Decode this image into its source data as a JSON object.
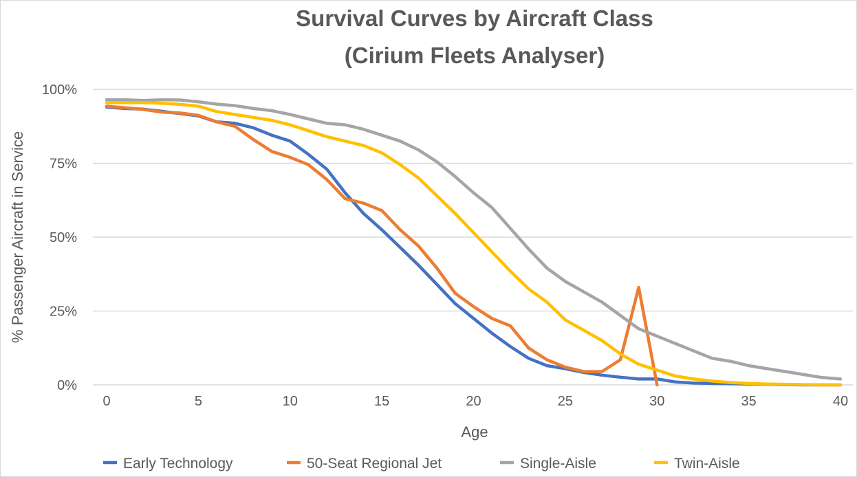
{
  "chart_data": {
    "type": "line",
    "title_line1": "Survival Curves by Aircraft Class",
    "title_line2": "(Cirium Fleets Analyser)",
    "xlabel": "Age",
    "ylabel": "% Passenger Aircraft in Service",
    "xlim": [
      0,
      40
    ],
    "ylim": [
      0,
      100
    ],
    "x_ticks": [
      0,
      5,
      10,
      15,
      20,
      25,
      30,
      35,
      40
    ],
    "y_ticks": [
      0,
      25,
      50,
      75,
      100
    ],
    "y_tick_labels": [
      "0%",
      "25%",
      "50%",
      "75%",
      "100%"
    ],
    "grid": true,
    "legend_position": "bottom",
    "series": [
      {
        "name": "Early Technology",
        "color": "#4472C4",
        "x": [
          0,
          1,
          2,
          3,
          4,
          5,
          6,
          7,
          8,
          9,
          10,
          11,
          12,
          13,
          14,
          15,
          16,
          17,
          18,
          19,
          20,
          21,
          22,
          23,
          24,
          25,
          26,
          27,
          28,
          29,
          30,
          31,
          32,
          33,
          34,
          35,
          36,
          37,
          38,
          39,
          40
        ],
        "values": [
          94,
          93.5,
          93.3,
          92.6,
          91.8,
          91,
          89,
          88.5,
          87,
          84.5,
          82.5,
          78,
          73,
          65,
          58,
          52.5,
          46.5,
          40.5,
          34,
          27.5,
          22.5,
          17.5,
          13,
          9,
          6.5,
          5.5,
          4.2,
          3.3,
          2.6,
          2,
          2,
          1,
          0.6,
          0.5,
          0.4,
          0.3,
          0.2,
          0.1,
          0,
          0,
          0
        ]
      },
      {
        "name": "50-Seat Regional Jet",
        "color": "#ED7D31",
        "x": [
          0,
          1,
          2,
          3,
          4,
          5,
          6,
          7,
          8,
          9,
          10,
          11,
          12,
          13,
          14,
          15,
          16,
          17,
          18,
          19,
          20,
          21,
          22,
          23,
          24,
          25,
          26,
          27,
          28,
          29,
          30
        ],
        "values": [
          94.3,
          93.8,
          93.2,
          92.3,
          92,
          91.2,
          89,
          87.5,
          83,
          79,
          77,
          74.5,
          69.5,
          63,
          61.5,
          59,
          52.5,
          47,
          39.5,
          31,
          26.5,
          22.5,
          20,
          12.5,
          8.5,
          6,
          4.5,
          4.5,
          8.5,
          33,
          0
        ]
      },
      {
        "name": "Single-Aisle",
        "color": "#A5A5A5",
        "x": [
          0,
          1,
          2,
          3,
          4,
          5,
          6,
          7,
          8,
          9,
          10,
          11,
          12,
          13,
          14,
          15,
          16,
          17,
          18,
          19,
          20,
          21,
          22,
          23,
          24,
          25,
          26,
          27,
          28,
          29,
          30,
          31,
          32,
          33,
          34,
          35,
          36,
          37,
          38,
          39,
          40
        ],
        "values": [
          96.5,
          96.5,
          96.2,
          96.5,
          96.4,
          95.8,
          95,
          94.5,
          93.5,
          92.8,
          91.5,
          90,
          88.5,
          88,
          86.5,
          84.5,
          82.5,
          79.5,
          75.5,
          70.5,
          65,
          60,
          53,
          46,
          39.5,
          35,
          31.5,
          28,
          23.5,
          19,
          16.5,
          14,
          11.5,
          9,
          8,
          6.5,
          5.5,
          4.5,
          3.5,
          2.5,
          2
        ]
      },
      {
        "name": "Twin-Aisle",
        "color": "#FFC000",
        "x": [
          0,
          1,
          2,
          3,
          4,
          5,
          6,
          7,
          8,
          9,
          10,
          11,
          12,
          13,
          14,
          15,
          16,
          17,
          18,
          19,
          20,
          21,
          22,
          23,
          24,
          25,
          26,
          27,
          28,
          29,
          30,
          31,
          32,
          33,
          34,
          35,
          36,
          37,
          38,
          39,
          40
        ],
        "values": [
          95.5,
          95.5,
          95.5,
          95.3,
          94.9,
          94.3,
          92.5,
          91.5,
          90.5,
          89.5,
          88,
          86,
          84,
          82.5,
          81,
          78.5,
          74.5,
          70,
          64,
          58,
          51.5,
          45,
          38.5,
          32.5,
          28,
          22,
          18.5,
          15,
          10.5,
          7,
          5,
          3,
          2,
          1.3,
          0.8,
          0.5,
          0.3,
          0.2,
          0.1,
          0,
          0
        ]
      }
    ]
  }
}
